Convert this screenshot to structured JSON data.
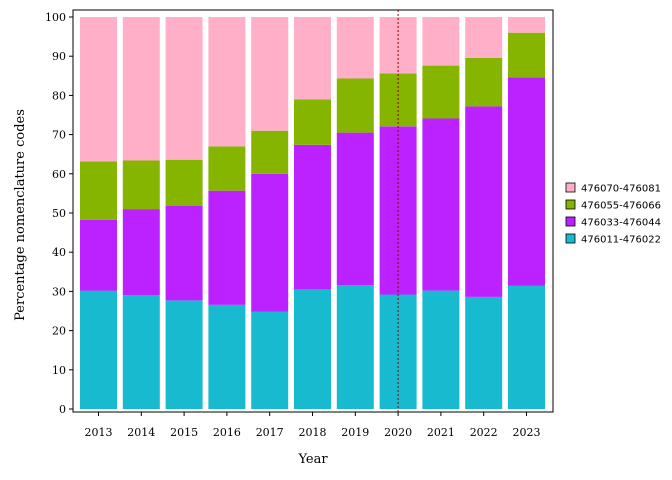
{
  "chart_data": {
    "type": "bar",
    "stacked": true,
    "xlabel": "Year",
    "ylabel": "Percentage nomenclature codes",
    "ylim": [
      0,
      100
    ],
    "yticks": [
      0,
      10,
      20,
      30,
      40,
      50,
      60,
      70,
      80,
      90,
      100
    ],
    "categories": [
      "2013",
      "2014",
      "2015",
      "2016",
      "2017",
      "2018",
      "2019",
      "2020",
      "2021",
      "2022",
      "2023"
    ],
    "reference_line_x": "2020",
    "grid": false,
    "legend_position": "right",
    "series": [
      {
        "name": "476011-476022",
        "color": "#17BACF",
        "values": [
          30.2,
          29.0,
          27.7,
          26.6,
          24.8,
          30.6,
          31.6,
          29.2,
          30.2,
          28.6,
          31.4
        ]
      },
      {
        "name": "476033-476044",
        "color": "#BC22FF",
        "values": [
          18.1,
          22.0,
          24.1,
          29.1,
          35.2,
          36.8,
          38.9,
          42.9,
          43.9,
          48.6,
          53.2
        ]
      },
      {
        "name": "476055-476066",
        "color": "#86B500",
        "values": [
          14.9,
          12.4,
          11.8,
          11.3,
          11.0,
          11.6,
          13.8,
          13.5,
          13.5,
          12.4,
          11.4
        ]
      },
      {
        "name": "476070-476081",
        "color": "#FFB0C8",
        "values": [
          36.8,
          36.6,
          36.4,
          33.0,
          29.0,
          21.0,
          15.7,
          14.4,
          12.4,
          10.4,
          4.0
        ]
      }
    ],
    "legend_order": [
      "476070-476081",
      "476055-476066",
      "476033-476044",
      "476011-476022"
    ]
  }
}
